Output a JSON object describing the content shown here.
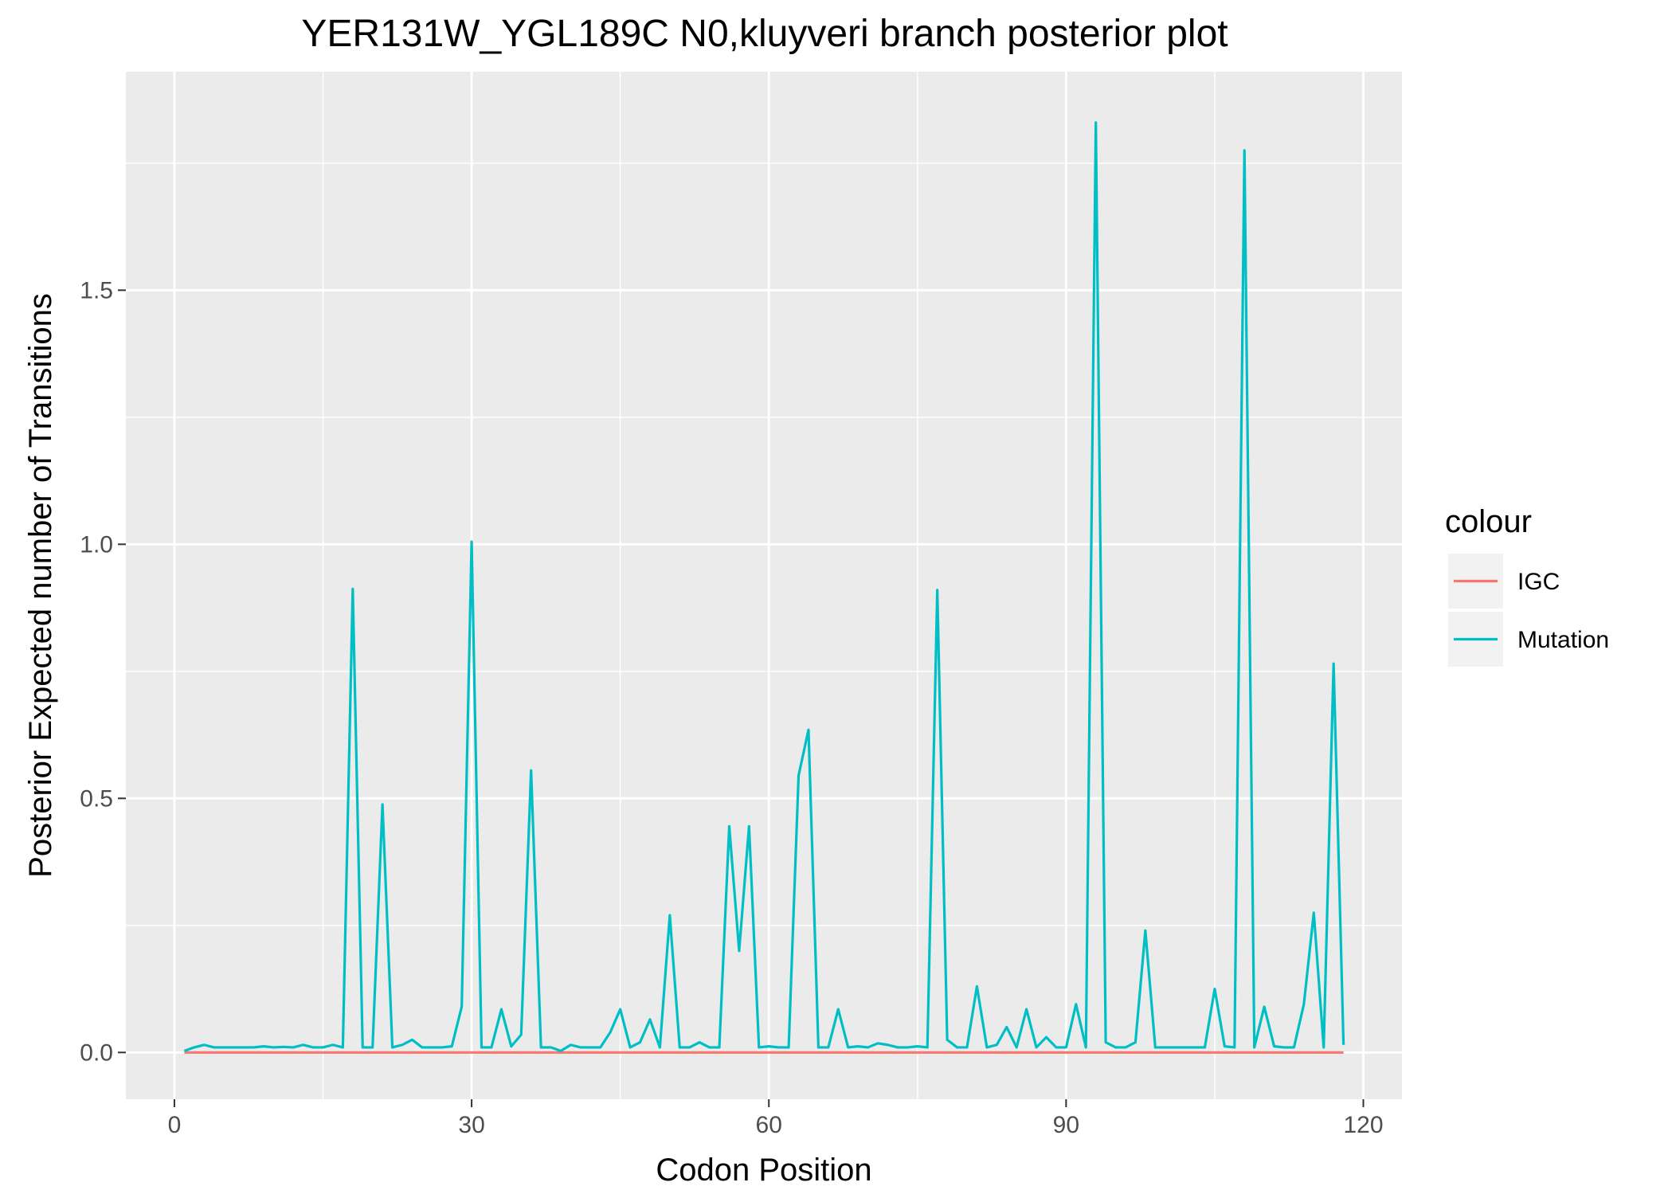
{
  "chart_data": {
    "type": "line",
    "title": "YER131W_YGL189C N0,kluyveri branch posterior plot",
    "xlabel": "Codon Position",
    "ylabel": "Posterior Expected number of Transitions",
    "xlim": [
      -4.9,
      123.9
    ],
    "ylim": [
      -0.092,
      1.93
    ],
    "xticks": [
      0,
      30,
      60,
      90,
      120
    ],
    "xtick_labels": [
      "0",
      "30",
      "60",
      "90",
      "120"
    ],
    "yticks": [
      0.0,
      0.5,
      1.0,
      1.5
    ],
    "ytick_labels": [
      "0.0",
      "0.5",
      "1.0",
      "1.5"
    ],
    "grid": true,
    "legend": {
      "title": "colour",
      "position": "right"
    },
    "x": [
      1,
      2,
      3,
      4,
      5,
      6,
      7,
      8,
      9,
      10,
      11,
      12,
      13,
      14,
      15,
      16,
      17,
      18,
      19,
      20,
      21,
      22,
      23,
      24,
      25,
      26,
      27,
      28,
      29,
      30,
      31,
      32,
      33,
      34,
      35,
      36,
      37,
      38,
      39,
      40,
      41,
      42,
      43,
      44,
      45,
      46,
      47,
      48,
      49,
      50,
      51,
      52,
      53,
      54,
      55,
      56,
      57,
      58,
      59,
      60,
      61,
      62,
      63,
      64,
      65,
      66,
      67,
      68,
      69,
      70,
      71,
      72,
      73,
      74,
      75,
      76,
      77,
      78,
      79,
      80,
      81,
      82,
      83,
      84,
      85,
      86,
      87,
      88,
      89,
      90,
      91,
      92,
      93,
      94,
      95,
      96,
      97,
      98,
      99,
      100,
      101,
      102,
      103,
      104,
      105,
      106,
      107,
      108,
      109,
      110,
      111,
      112,
      113,
      114,
      115,
      116,
      117,
      118
    ],
    "series": [
      {
        "name": "IGC",
        "color": "#F8766D",
        "values": [
          0,
          0,
          0,
          0,
          0,
          0,
          0,
          0,
          0,
          0,
          0,
          0,
          0,
          0,
          0,
          0,
          0,
          0,
          0,
          0,
          0,
          0,
          0,
          0,
          0,
          0,
          0,
          0,
          0,
          0,
          0,
          0,
          0,
          0,
          0,
          0,
          0,
          0,
          0,
          0,
          0,
          0,
          0,
          0,
          0,
          0,
          0,
          0,
          0,
          0,
          0,
          0,
          0,
          0,
          0,
          0,
          0,
          0,
          0,
          0,
          0,
          0,
          0,
          0,
          0,
          0,
          0,
          0,
          0,
          0,
          0,
          0,
          0,
          0,
          0,
          0,
          0,
          0,
          0,
          0,
          0,
          0,
          0,
          0,
          0,
          0,
          0,
          0,
          0,
          0,
          0,
          0,
          0,
          0,
          0,
          0,
          0,
          0,
          0,
          0,
          0,
          0,
          0,
          0,
          0,
          0,
          0,
          0,
          0,
          0,
          0,
          0,
          0,
          0,
          0,
          0,
          0,
          0
        ]
      },
      {
        "name": "Mutation",
        "color": "#00BFC4",
        "values": [
          0.003,
          0.01,
          0.015,
          0.01,
          0.01,
          0.01,
          0.01,
          0.01,
          0.012,
          0.01,
          0.011,
          0.01,
          0.015,
          0.01,
          0.01,
          0.015,
          0.01,
          0.912,
          0.01,
          0.01,
          0.488,
          0.01,
          0.015,
          0.025,
          0.01,
          0.01,
          0.01,
          0.012,
          0.09,
          1.005,
          0.01,
          0.01,
          0.085,
          0.012,
          0.035,
          0.555,
          0.01,
          0.01,
          0.003,
          0.015,
          0.01,
          0.01,
          0.01,
          0.04,
          0.085,
          0.01,
          0.02,
          0.065,
          0.01,
          0.27,
          0.01,
          0.01,
          0.02,
          0.01,
          0.01,
          0.445,
          0.2,
          0.445,
          0.01,
          0.012,
          0.01,
          0.01,
          0.545,
          0.635,
          0.01,
          0.01,
          0.085,
          0.01,
          0.012,
          0.01,
          0.018,
          0.015,
          0.01,
          0.01,
          0.012,
          0.01,
          0.91,
          0.025,
          0.01,
          0.01,
          0.13,
          0.01,
          0.015,
          0.05,
          0.01,
          0.085,
          0.01,
          0.03,
          0.01,
          0.01,
          0.095,
          0.01,
          1.83,
          0.02,
          0.01,
          0.01,
          0.02,
          0.24,
          0.01,
          0.01,
          0.01,
          0.01,
          0.01,
          0.01,
          0.125,
          0.012,
          0.01,
          1.775,
          0.01,
          0.09,
          0.012,
          0.01,
          0.01,
          0.095,
          0.275,
          0.01,
          0.765,
          0.015
        ]
      }
    ]
  }
}
